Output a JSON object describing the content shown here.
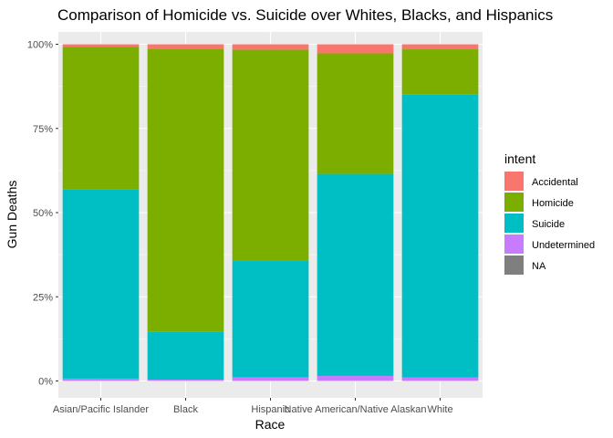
{
  "chart_data": {
    "type": "bar",
    "stacked": "fill",
    "title": "Comparison of Homicide vs. Suicide over Whites, Blacks, and Hispanics",
    "xlabel": "Race",
    "ylabel": "Gun Deaths",
    "ylim": [
      0,
      1
    ],
    "yticks": [
      "0%",
      "25%",
      "50%",
      "75%",
      "100%"
    ],
    "categories": [
      "Asian/Pacific Islander",
      "Black",
      "Hispanic",
      "Native American/Native Alaskan",
      "White"
    ],
    "legend_title": "intent",
    "legend_position": "right",
    "grid": true,
    "series": [
      {
        "name": "Accidental",
        "color": "#F8766D",
        "values": [
          0.008,
          0.013,
          0.016,
          0.027,
          0.015
        ]
      },
      {
        "name": "Homicide",
        "color": "#7CAE00",
        "values": [
          0.424,
          0.84,
          0.626,
          0.358,
          0.135
        ]
      },
      {
        "name": "Suicide",
        "color": "#00BFC4",
        "values": [
          0.561,
          0.143,
          0.347,
          0.6,
          0.84
        ]
      },
      {
        "name": "Undetermined",
        "color": "#C77CFF",
        "values": [
          0.007,
          0.004,
          0.011,
          0.015,
          0.01
        ]
      },
      {
        "name": "NA",
        "color": "#7F7F7F",
        "values": [
          0,
          0,
          0,
          0,
          0
        ]
      }
    ]
  }
}
